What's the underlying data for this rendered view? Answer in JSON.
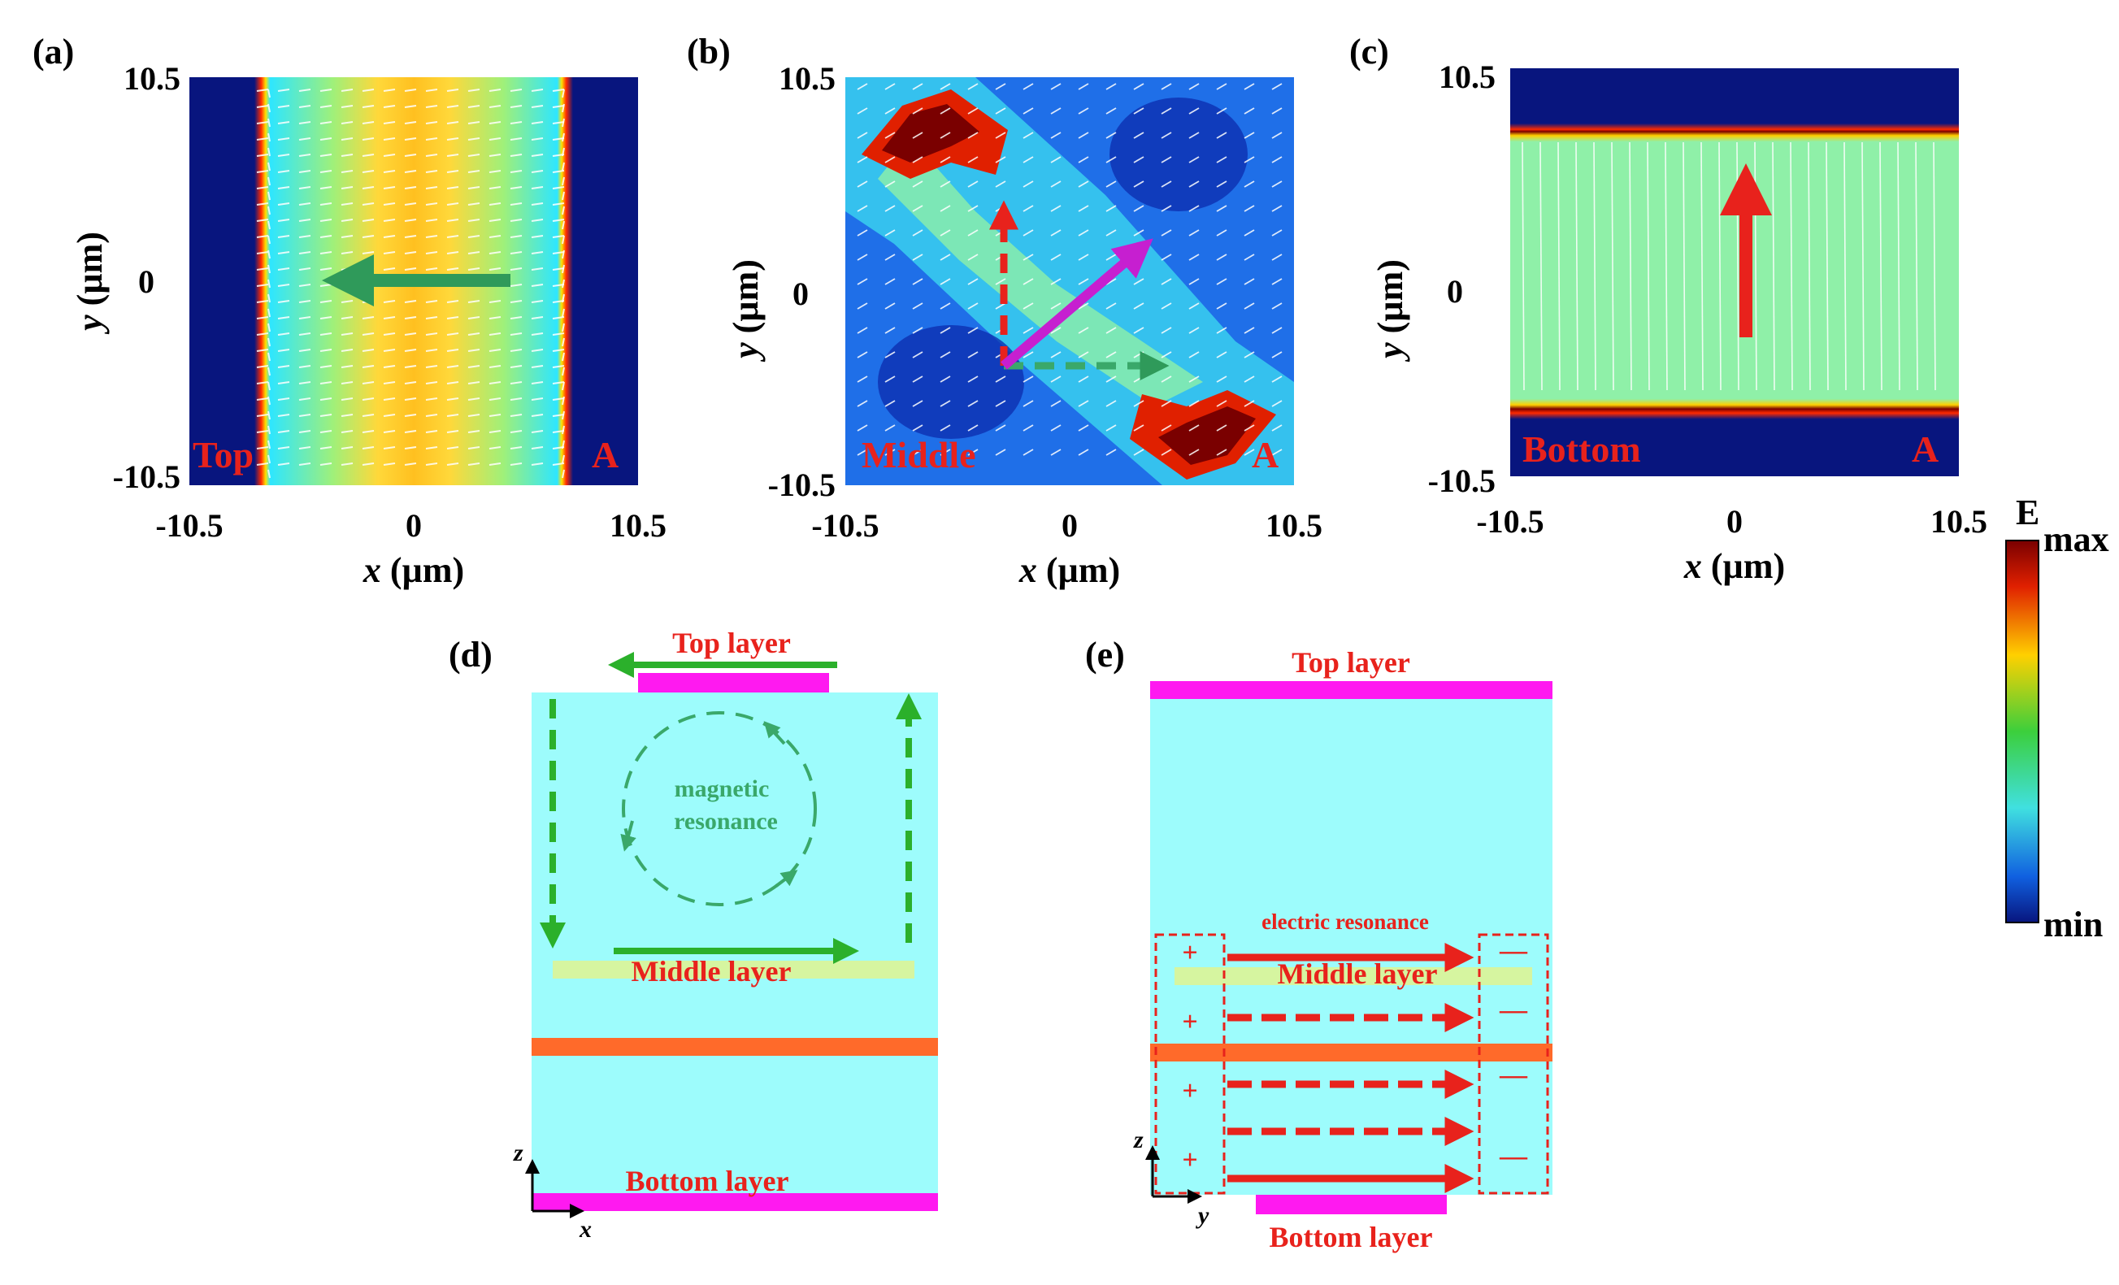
{
  "panels": {
    "a": {
      "label": "(a)",
      "corner_left": "Top",
      "corner_right": "A"
    },
    "b": {
      "label": "(b)",
      "corner_left": "Middle",
      "corner_right": "A"
    },
    "c": {
      "label": "(c)",
      "corner_left": "Bottom",
      "corner_right": "A"
    },
    "d": {
      "label": "(d)"
    },
    "e": {
      "label": "(e)"
    }
  },
  "axes": {
    "x_ticks": [
      "-10.5",
      "0",
      "10.5"
    ],
    "y_ticks": [
      "10.5",
      "0",
      "-10.5"
    ],
    "x_var": "x",
    "y_var": "y",
    "unit": " (µm)"
  },
  "colorbar": {
    "title": "E",
    "max": "max",
    "min": "min"
  },
  "diagram_d": {
    "top": "Top layer",
    "middle": "Middle layer",
    "bottom": "Bottom layer",
    "resonance_1": "magnetic",
    "resonance_2": "resonance",
    "axis_z": "z",
    "axis_x": "x"
  },
  "diagram_e": {
    "top": "Top layer",
    "middle": "Middle layer",
    "bottom": "Bottom layer",
    "resonance": "electric resonance",
    "plus": "+",
    "minus": "—",
    "axis_z": "z",
    "axis_y": "y"
  },
  "colors": {
    "cyan": "#9dfcfc",
    "magenta": "#ff19f0",
    "orange": "#ff6a2a",
    "green": "#2f9a5a",
    "red": "#e8221c",
    "navy": "#08157e"
  }
}
